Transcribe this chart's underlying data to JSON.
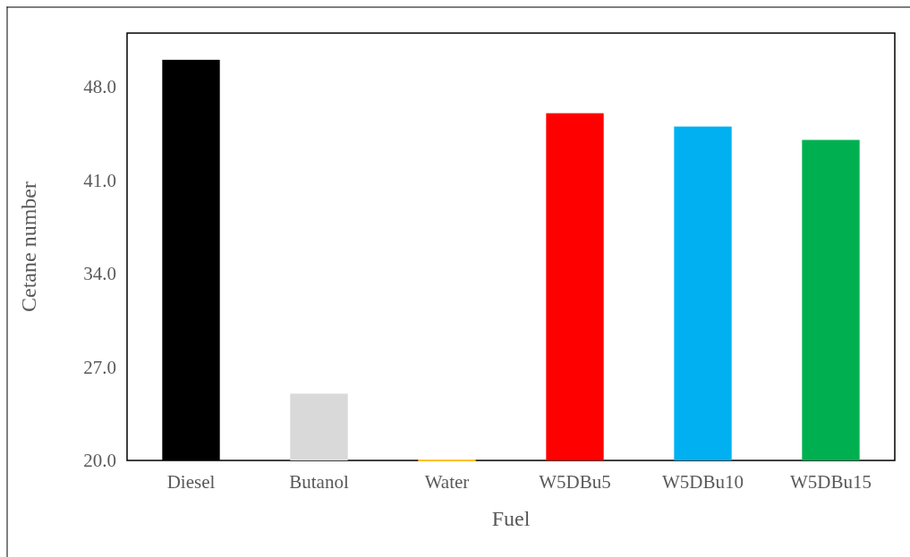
{
  "chart_data": {
    "type": "bar",
    "xlabel": "Fuel",
    "ylabel": "Cetane number",
    "categories": [
      "Diesel",
      "Butanol",
      "Water",
      "W5DBu5",
      "W5DBu10",
      "W5DBu15"
    ],
    "values": [
      50,
      25,
      20,
      46,
      45,
      44
    ],
    "colors": [
      "#000000",
      "#d9d9d9",
      "#ffc000",
      "#ff0000",
      "#00b0f0",
      "#00b050"
    ],
    "ylim": [
      20,
      52
    ],
    "yticks": [
      {
        "value": 20,
        "label": "20.0"
      },
      {
        "value": 27,
        "label": "27.0"
      },
      {
        "value": 34,
        "label": "34.0"
      },
      {
        "value": 41,
        "label": "41.0"
      },
      {
        "value": 48,
        "label": "48.0"
      }
    ],
    "grid": false
  }
}
